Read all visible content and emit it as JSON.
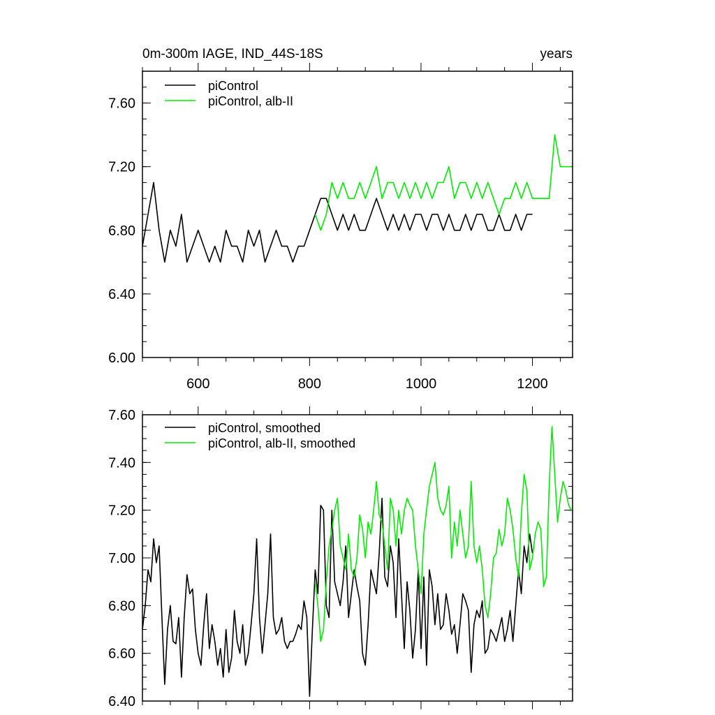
{
  "chart_data": [
    {
      "type": "line",
      "title_left": "0m-300m IAGE, IND_44S-18S",
      "title_right": "years",
      "xlim": [
        500,
        1272
      ],
      "ylim": [
        6.0,
        7.8
      ],
      "xticks": [
        600,
        800,
        1000,
        1200
      ],
      "xtick_labels": [
        "600",
        "800",
        "1000",
        "1200"
      ],
      "yticks": [
        6.0,
        6.4,
        6.8,
        7.2,
        7.6
      ],
      "ytick_labels": [
        "6.00",
        "6.40",
        "6.80",
        "7.20",
        "7.60"
      ],
      "legend_position": "top-left",
      "grid": false,
      "series": [
        {
          "name": "piControl",
          "color": "#000000",
          "x": [
            500,
            510,
            520,
            530,
            540,
            550,
            560,
            570,
            580,
            590,
            600,
            610,
            620,
            630,
            640,
            650,
            660,
            670,
            680,
            690,
            700,
            710,
            720,
            730,
            740,
            750,
            760,
            770,
            780,
            790,
            800,
            810,
            820,
            830,
            840,
            850,
            860,
            870,
            880,
            890,
            900,
            910,
            920,
            930,
            940,
            950,
            960,
            970,
            980,
            990,
            1000,
            1010,
            1020,
            1030,
            1040,
            1050,
            1060,
            1070,
            1080,
            1090,
            1100,
            1110,
            1120,
            1130,
            1140,
            1150,
            1160,
            1170,
            1180,
            1190,
            1200
          ],
          "y": [
            6.7,
            6.9,
            7.1,
            6.8,
            6.6,
            6.8,
            6.7,
            6.9,
            6.6,
            6.7,
            6.8,
            6.7,
            6.6,
            6.7,
            6.6,
            6.8,
            6.7,
            6.7,
            6.6,
            6.8,
            6.7,
            6.8,
            6.6,
            6.7,
            6.8,
            6.7,
            6.7,
            6.6,
            6.7,
            6.7,
            6.8,
            6.9,
            7.0,
            7.0,
            6.9,
            6.8,
            6.9,
            6.8,
            6.9,
            6.8,
            6.8,
            6.9,
            7.0,
            6.9,
            6.8,
            6.9,
            6.8,
            6.9,
            6.8,
            6.9,
            6.9,
            6.8,
            6.9,
            6.9,
            6.8,
            6.9,
            6.8,
            6.8,
            6.9,
            6.8,
            6.9,
            6.9,
            6.8,
            6.8,
            6.9,
            6.8,
            6.8,
            6.9,
            6.8,
            6.9,
            6.9
          ]
        },
        {
          "name": "piControl, alb-II",
          "color": "#00ee00",
          "x": [
            810,
            820,
            830,
            840,
            850,
            860,
            870,
            880,
            890,
            900,
            910,
            920,
            930,
            940,
            950,
            960,
            970,
            980,
            990,
            1000,
            1010,
            1020,
            1030,
            1040,
            1050,
            1060,
            1070,
            1080,
            1090,
            1100,
            1110,
            1120,
            1130,
            1140,
            1150,
            1160,
            1170,
            1180,
            1190,
            1200,
            1210,
            1220,
            1230,
            1240,
            1250,
            1260,
            1270
          ],
          "y": [
            6.9,
            6.8,
            6.9,
            7.1,
            7.0,
            7.1,
            7.0,
            7.0,
            7.1,
            7.0,
            7.1,
            7.2,
            7.0,
            7.1,
            7.1,
            7.0,
            7.1,
            7.0,
            7.1,
            7.0,
            7.1,
            7.0,
            7.1,
            7.1,
            7.2,
            7.0,
            7.1,
            7.1,
            7.0,
            7.1,
            7.0,
            7.1,
            7.0,
            6.9,
            7.0,
            7.0,
            7.1,
            7.0,
            7.1,
            7.0,
            7.0,
            7.0,
            7.0,
            7.4,
            7.2,
            7.2,
            7.2
          ]
        }
      ]
    },
    {
      "type": "line",
      "xlim": [
        500,
        1272
      ],
      "ylim": [
        6.4,
        7.6
      ],
      "xticks": [
        600,
        800,
        1000,
        1200
      ],
      "yticks": [
        6.4,
        6.6,
        6.8,
        7.0,
        7.2,
        7.4,
        7.6
      ],
      "ytick_labels": [
        "6.40",
        "6.60",
        "6.80",
        "7.00",
        "7.20",
        "7.40",
        "7.60"
      ],
      "legend_position": "top-left",
      "grid": false,
      "series": [
        {
          "name": "piControl, smoothed",
          "color": "#000000",
          "x": [
            500,
            505,
            510,
            515,
            520,
            525,
            530,
            535,
            540,
            545,
            550,
            555,
            560,
            565,
            570,
            575,
            580,
            585,
            590,
            595,
            600,
            605,
            610,
            615,
            620,
            625,
            630,
            635,
            640,
            645,
            650,
            655,
            660,
            665,
            670,
            675,
            680,
            685,
            690,
            695,
            700,
            705,
            710,
            715,
            720,
            725,
            730,
            735,
            740,
            745,
            750,
            755,
            760,
            765,
            770,
            775,
            780,
            785,
            790,
            795,
            800,
            805,
            810,
            815,
            820,
            825,
            830,
            835,
            840,
            845,
            850,
            855,
            860,
            865,
            870,
            875,
            880,
            885,
            890,
            895,
            900,
            905,
            910,
            915,
            920,
            925,
            930,
            935,
            940,
            945,
            950,
            955,
            960,
            965,
            970,
            975,
            980,
            985,
            990,
            995,
            1000,
            1005,
            1010,
            1015,
            1020,
            1025,
            1030,
            1035,
            1040,
            1045,
            1050,
            1055,
            1060,
            1065,
            1070,
            1075,
            1080,
            1085,
            1090,
            1095,
            1100,
            1105,
            1110,
            1115,
            1120,
            1125,
            1130,
            1135,
            1140,
            1145,
            1150,
            1155,
            1160,
            1165,
            1170,
            1175,
            1180,
            1185,
            1190,
            1195,
            1200
          ],
          "y": [
            6.7,
            6.8,
            6.95,
            6.9,
            7.08,
            6.98,
            7.05,
            6.75,
            6.47,
            6.7,
            6.8,
            6.65,
            6.64,
            6.75,
            6.5,
            6.75,
            6.93,
            6.85,
            6.87,
            6.7,
            6.6,
            6.55,
            6.72,
            6.85,
            6.62,
            6.72,
            6.65,
            6.55,
            6.62,
            6.5,
            6.7,
            6.52,
            6.58,
            6.78,
            6.65,
            6.6,
            6.72,
            6.55,
            6.6,
            6.72,
            6.85,
            7.08,
            6.75,
            6.6,
            6.72,
            6.85,
            7.1,
            6.75,
            6.68,
            6.7,
            6.75,
            6.65,
            6.62,
            6.65,
            6.65,
            6.68,
            6.72,
            6.7,
            6.82,
            6.75,
            6.42,
            6.7,
            6.95,
            6.85,
            7.22,
            7.2,
            6.8,
            6.75,
            7.2,
            6.9,
            6.85,
            6.8,
            6.9,
            7.05,
            6.75,
            6.85,
            6.95,
            6.88,
            6.82,
            6.6,
            6.55,
            6.72,
            6.95,
            6.9,
            6.85,
            7.02,
            7.25,
            6.92,
            6.88,
            7.05,
            6.98,
            6.75,
            7.08,
            6.85,
            6.62,
            6.9,
            6.78,
            6.58,
            6.7,
            6.95,
            6.62,
            6.92,
            6.55,
            6.95,
            6.88,
            6.72,
            6.85,
            6.7,
            6.72,
            6.85,
            6.78,
            6.68,
            6.72,
            6.6,
            6.72,
            6.85,
            6.82,
            6.78,
            6.52,
            6.72,
            6.78,
            6.75,
            6.82,
            6.6,
            6.62,
            6.7,
            6.68,
            6.65,
            6.7,
            6.75,
            6.65,
            6.7,
            6.78,
            6.65,
            6.8,
            6.95,
            6.85,
            7.05,
            6.98,
            7.1,
            7.02
          ]
        },
        {
          "name": "piControl, alb-II, smoothed",
          "color": "#00ee00",
          "x": [
            810,
            815,
            820,
            825,
            830,
            835,
            840,
            845,
            850,
            855,
            860,
            865,
            870,
            875,
            880,
            885,
            890,
            895,
            900,
            905,
            910,
            915,
            920,
            925,
            930,
            935,
            940,
            945,
            950,
            955,
            960,
            965,
            970,
            975,
            980,
            985,
            990,
            995,
            1000,
            1005,
            1010,
            1015,
            1020,
            1025,
            1030,
            1035,
            1040,
            1045,
            1050,
            1055,
            1060,
            1065,
            1070,
            1075,
            1080,
            1085,
            1090,
            1095,
            1100,
            1105,
            1110,
            1115,
            1120,
            1125,
            1130,
            1135,
            1140,
            1145,
            1150,
            1155,
            1160,
            1165,
            1170,
            1175,
            1180,
            1185,
            1190,
            1195,
            1200,
            1205,
            1210,
            1215,
            1220,
            1225,
            1230,
            1235,
            1240,
            1245,
            1250,
            1255,
            1260,
            1265,
            1270
          ],
          "y": [
            6.9,
            6.8,
            6.65,
            6.7,
            6.9,
            7.05,
            7.12,
            7.2,
            7.25,
            7.05,
            7.0,
            6.95,
            7.1,
            6.95,
            6.92,
            7.0,
            7.18,
            7.12,
            7.0,
            7.15,
            7.1,
            7.2,
            7.32,
            7.18,
            7.15,
            7.05,
            6.95,
            7.25,
            7.2,
            7.05,
            7.2,
            7.1,
            7.2,
            7.25,
            7.22,
            7.2,
            7.05,
            6.95,
            6.85,
            7.1,
            7.2,
            7.3,
            7.35,
            7.4,
            7.25,
            7.2,
            7.18,
            7.22,
            7.3,
            7.0,
            7.15,
            7.05,
            7.2,
            7.1,
            7.0,
            7.05,
            7.32,
            7.05,
            6.98,
            7.05,
            6.95,
            6.8,
            6.75,
            6.85,
            7.0,
            7.02,
            7.12,
            7.05,
            7.1,
            7.25,
            7.2,
            7.12,
            7.0,
            6.92,
            7.18,
            7.35,
            7.28,
            6.95,
            7.0,
            7.1,
            7.15,
            7.12,
            6.88,
            6.92,
            7.3,
            7.55,
            7.35,
            7.15,
            7.25,
            7.32,
            7.28,
            7.22,
            7.2
          ]
        }
      ]
    }
  ],
  "legends": {
    "top": [
      "piControl",
      "piControl, alb-II"
    ],
    "bottom": [
      "piControl, smoothed",
      "piControl, alb-II, smoothed"
    ]
  }
}
